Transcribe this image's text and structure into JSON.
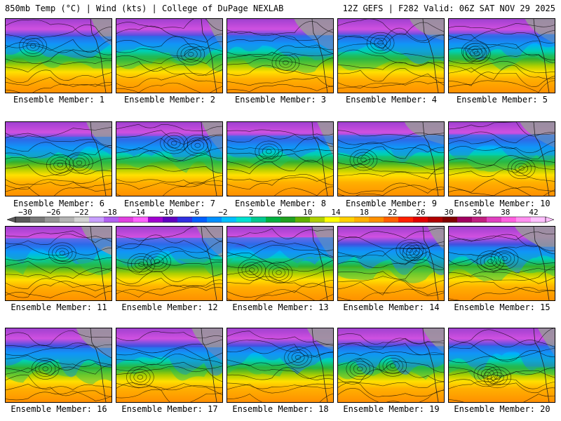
{
  "header": {
    "left": "850mb Temp (°C) | Wind (kts) | College of DuPage NEXLAB",
    "right": "12Z GEFS | F282 Valid: 06Z SAT NOV 29 2025"
  },
  "caption_prefix": "Ensemble Member:",
  "members": [
    {
      "label": "Ensemble Member: 1"
    },
    {
      "label": "Ensemble Member: 2"
    },
    {
      "label": "Ensemble Member: 3"
    },
    {
      "label": "Ensemble Member: 4"
    },
    {
      "label": "Ensemble Member: 5"
    },
    {
      "label": "Ensemble Member: 6"
    },
    {
      "label": "Ensemble Member: 7"
    },
    {
      "label": "Ensemble Member: 8"
    },
    {
      "label": "Ensemble Member: 9"
    },
    {
      "label": "Ensemble Member: 10"
    },
    {
      "label": "Ensemble Member: 11"
    },
    {
      "label": "Ensemble Member: 12"
    },
    {
      "label": "Ensemble Member: 13"
    },
    {
      "label": "Ensemble Member: 14"
    },
    {
      "label": "Ensemble Member: 15"
    },
    {
      "label": "Ensemble Member: 16"
    },
    {
      "label": "Ensemble Member: 17"
    },
    {
      "label": "Ensemble Member: 18"
    },
    {
      "label": "Ensemble Member: 19"
    },
    {
      "label": "Ensemble Member: 20"
    }
  ],
  "colorbar": {
    "labels": [
      "−30",
      "−26",
      "−22",
      "−18",
      "−14",
      "−10",
      "−6",
      "−2",
      "2",
      "6",
      "10",
      "14",
      "18",
      "22",
      "26",
      "30",
      "34",
      "38",
      "42"
    ],
    "colors": [
      "#5a5a5a",
      "#787878",
      "#969696",
      "#b4b4b4",
      "#d2d2d2",
      "#c8a0ff",
      "#b060f0",
      "#e040e0",
      "#ff60ff",
      "#a000d0",
      "#6000c0",
      "#3030e0",
      "#0060ff",
      "#0090ff",
      "#00c0ff",
      "#00e0d0",
      "#00c890",
      "#00b040",
      "#20a020",
      "#60b000",
      "#b0d000",
      "#ffff00",
      "#ffd000",
      "#ffb000",
      "#ff9000",
      "#ff6000",
      "#ff2000",
      "#e00000",
      "#b00000",
      "#800000",
      "#a00060",
      "#c02080",
      "#e040c0",
      "#ff60e0",
      "#ff90f0",
      "#ffc0ff"
    ]
  }
}
